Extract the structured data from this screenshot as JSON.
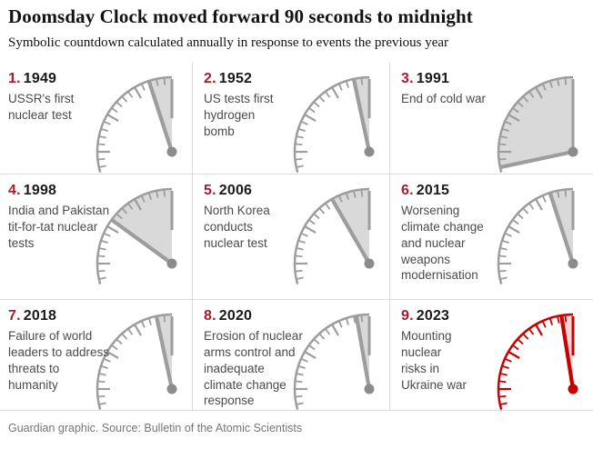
{
  "header": {
    "title": "Doomsday Clock moved forward 90 seconds to midnight",
    "subtitle": "Symbolic countdown calculated annually in response to events the previous year"
  },
  "footer": {
    "text": "Guardian graphic. Source: Bulletin of the Atomic Scientists"
  },
  "colors": {
    "accent_number_red": "#ab1b2d",
    "clock_gray": "#9d9d9d",
    "clock_dot_gray": "#8c8c8c",
    "wedge_gray": "#d9d9d9",
    "clock_red": "#c70000",
    "wedge_red": "#f6d7d7",
    "divider": "#dcdcdc",
    "label_gray": "#4b4b4b",
    "footer_gray": "#767676"
  },
  "clocks": [
    {
      "index": "1.",
      "year": "1949",
      "label": "USSR's first\nnuclear test",
      "minutes_to_midnight": 3,
      "theme": "gray"
    },
    {
      "index": "2.",
      "year": "1952",
      "label": "US tests first\nhydrogen\nbomb",
      "minutes_to_midnight": 2,
      "theme": "gray"
    },
    {
      "index": "3.",
      "year": "1991",
      "label": "End of cold war",
      "minutes_to_midnight": 17,
      "theme": "gray"
    },
    {
      "index": "4.",
      "year": "1998",
      "label": "India and Pakistan\ntit-for-tat nuclear\ntests",
      "minutes_to_midnight": 9,
      "theme": "gray"
    },
    {
      "index": "5.",
      "year": "2006",
      "label": "North Korea\nconducts\nnuclear test",
      "minutes_to_midnight": 5,
      "theme": "gray"
    },
    {
      "index": "6.",
      "year": "2015",
      "label": "Worsening\nclimate change\nand nuclear\nweapons\nmodernisation",
      "minutes_to_midnight": 3,
      "theme": "gray"
    },
    {
      "index": "7.",
      "year": "2018",
      "label": "Failure of world\nleaders to address\nthreats to\nhumanity",
      "minutes_to_midnight": 2,
      "theme": "gray"
    },
    {
      "index": "8.",
      "year": "2020",
      "label": "Erosion of nuclear\narms control and\ninadequate\nclimate change\nresponse",
      "minutes_to_midnight": 1.667,
      "theme": "gray"
    },
    {
      "index": "9.",
      "year": "2023",
      "label": "Mounting\nnuclear\nrisks in\nUkraine war",
      "minutes_to_midnight": 1.5,
      "theme": "red"
    }
  ],
  "chart_data": {
    "type": "table",
    "title": "Doomsday Clock moved forward 90 seconds to midnight",
    "subtitle": "Symbolic countdown calculated annually in response to events the previous year",
    "columns": [
      "rank",
      "year",
      "event",
      "time_to_midnight"
    ],
    "rows": [
      [
        1,
        1949,
        "USSR's first nuclear test",
        "3 minutes"
      ],
      [
        2,
        1952,
        "US tests first hydrogen bomb",
        "2 minutes"
      ],
      [
        3,
        1991,
        "End of cold war",
        "17 minutes"
      ],
      [
        4,
        1998,
        "India and Pakistan tit-for-tat nuclear tests",
        "9 minutes"
      ],
      [
        5,
        2006,
        "North Korea conducts nuclear test",
        "5 minutes"
      ],
      [
        6,
        2015,
        "Worsening climate change and nuclear weapons modernisation",
        "3 minutes"
      ],
      [
        7,
        2018,
        "Failure of world leaders to address threats to humanity",
        "2 minutes"
      ],
      [
        8,
        2020,
        "Erosion of nuclear arms control and inadequate climate change response",
        "100 seconds"
      ],
      [
        9,
        2023,
        "Mounting nuclear risks in Ukraine war",
        "90 seconds"
      ]
    ],
    "layout": "3x3 grid of quarter-circle clock gauges, hand angle = minutes to midnight (0-17+), final 2023 gauge highlighted in red",
    "source": "Bulletin of the Atomic Scientists"
  }
}
